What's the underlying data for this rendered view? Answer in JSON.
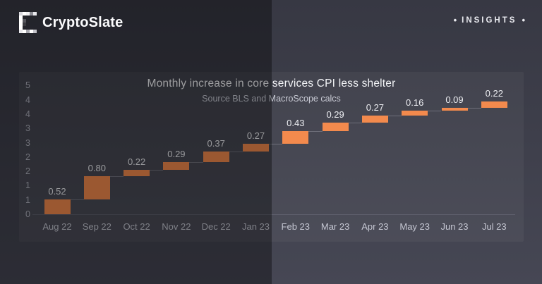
{
  "header": {
    "brand": "CryptoSlate",
    "insights_label": "INSIGHTS",
    "bullet": "•"
  },
  "chart_data": {
    "type": "bar",
    "subtype": "waterfall",
    "title": "Monthly increase in core services CPI less shelter",
    "subtitle": "Source BLS and MacroScope calcs",
    "categories": [
      "Aug 22",
      "Sep 22",
      "Oct 22",
      "Nov 22",
      "Dec 22",
      "Jan 23",
      "Feb 23",
      "Mar 23",
      "Apr 23",
      "May 23",
      "Jun 23",
      "Jul 23"
    ],
    "values": [
      0.52,
      0.8,
      0.22,
      0.29,
      0.37,
      0.27,
      0.43,
      0.29,
      0.27,
      0.16,
      0.09,
      0.22
    ],
    "cumulative": [
      0.52,
      1.32,
      1.54,
      1.83,
      2.2,
      2.47,
      2.9,
      3.19,
      3.46,
      3.62,
      3.71,
      3.93
    ],
    "xlabel": "",
    "ylabel": "",
    "ylim": [
      0,
      4.5
    ],
    "y_tick_values": [
      0,
      0.5,
      1,
      1.5,
      2,
      2.5,
      3,
      3.5,
      4,
      4.5
    ],
    "y_tick_labels": [
      "0",
      "1",
      "1",
      "2",
      "2",
      "3",
      "3",
      "4",
      "4",
      "5"
    ],
    "grid": false,
    "legend": false,
    "bar_color": "#f38a4d"
  },
  "colors": {
    "page_bg_top": "#373843",
    "page_bg_bottom": "#464754",
    "bar_orange": "#f38a4d",
    "title_text": "#f3f4f7",
    "subtitle_text": "#c9cbd5",
    "axis_text": "#aeb0bc",
    "month_text": "#c5c7d2",
    "value_text": "#edeef2",
    "left_shade": "rgba(0,0,0,0.36)"
  }
}
